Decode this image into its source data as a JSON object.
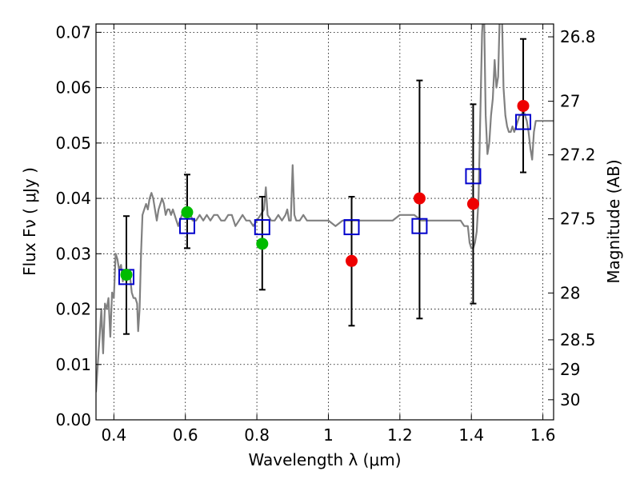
{
  "chart_data": {
    "type": "scatter",
    "xlabel": "Wavelength  λ (μm)",
    "ylabel_left": "Flux  Fν ( μJy )",
    "ylabel_right": "Magnitude (AB)",
    "xlim": [
      0.35,
      1.63
    ],
    "ylim": [
      0.0,
      0.0715
    ],
    "grid": true,
    "x_ticks": [
      0.4,
      0.6,
      0.8,
      1.0,
      1.2,
      1.4,
      1.6
    ],
    "x_tick_labels": [
      "0.4",
      "0.6",
      "0.8",
      "1",
      "1.2",
      "1.4",
      "1.6"
    ],
    "y_ticks": [
      0.0,
      0.01,
      0.02,
      0.03,
      0.04,
      0.05,
      0.06,
      0.07
    ],
    "y_tick_labels": [
      "0.00",
      "0.01",
      "0.02",
      "0.03",
      "0.04",
      "0.05",
      "0.06",
      "0.07"
    ],
    "right_axis_ticks": [
      {
        "label": "26.8",
        "value": 26.8
      },
      {
        "label": "27",
        "value": 27.0
      },
      {
        "label": "27.2",
        "value": 27.2
      },
      {
        "label": "27.5",
        "value": 27.5
      },
      {
        "label": "28",
        "value": 28.0
      },
      {
        "label": "28.5",
        "value": 28.5
      },
      {
        "label": "29",
        "value": 29.0
      },
      {
        "label": "30",
        "value": 30.0
      }
    ],
    "colors": {
      "model_spectrum": "#808080",
      "model_photometry": "#0000cc",
      "green_points": "#00bb00",
      "red_points": "#ee0000",
      "error_bars": "#000000"
    },
    "series": [
      {
        "kind": "model_spectrum",
        "points": [
          [
            0.35,
            0.005
          ],
          [
            0.355,
            0.01
          ],
          [
            0.36,
            0.015
          ],
          [
            0.365,
            0.02
          ],
          [
            0.37,
            0.012
          ],
          [
            0.375,
            0.021
          ],
          [
            0.38,
            0.02
          ],
          [
            0.385,
            0.022
          ],
          [
            0.39,
            0.015
          ],
          [
            0.395,
            0.023
          ],
          [
            0.4,
            0.022
          ],
          [
            0.405,
            0.03
          ],
          [
            0.41,
            0.029
          ],
          [
            0.415,
            0.027
          ],
          [
            0.42,
            0.028
          ],
          [
            0.425,
            0.025
          ],
          [
            0.43,
            0.027
          ],
          [
            0.435,
            0.025
          ],
          [
            0.44,
            0.026
          ],
          [
            0.445,
            0.026
          ],
          [
            0.45,
            0.023
          ],
          [
            0.455,
            0.022
          ],
          [
            0.46,
            0.022
          ],
          [
            0.465,
            0.021
          ],
          [
            0.468,
            0.016
          ],
          [
            0.472,
            0.02
          ],
          [
            0.476,
            0.03
          ],
          [
            0.48,
            0.037
          ],
          [
            0.485,
            0.038
          ],
          [
            0.49,
            0.039
          ],
          [
            0.495,
            0.038
          ],
          [
            0.5,
            0.04
          ],
          [
            0.505,
            0.041
          ],
          [
            0.51,
            0.04
          ],
          [
            0.515,
            0.038
          ],
          [
            0.52,
            0.036
          ],
          [
            0.525,
            0.038
          ],
          [
            0.53,
            0.039
          ],
          [
            0.535,
            0.04
          ],
          [
            0.54,
            0.039
          ],
          [
            0.545,
            0.037
          ],
          [
            0.55,
            0.038
          ],
          [
            0.555,
            0.038
          ],
          [
            0.56,
            0.037
          ],
          [
            0.565,
            0.038
          ],
          [
            0.57,
            0.037
          ],
          [
            0.575,
            0.036
          ],
          [
            0.58,
            0.035
          ],
          [
            0.585,
            0.036
          ],
          [
            0.59,
            0.037
          ],
          [
            0.6,
            0.037
          ],
          [
            0.61,
            0.038
          ],
          [
            0.62,
            0.036
          ],
          [
            0.63,
            0.036
          ],
          [
            0.64,
            0.037
          ],
          [
            0.65,
            0.036
          ],
          [
            0.66,
            0.037
          ],
          [
            0.67,
            0.036
          ],
          [
            0.68,
            0.037
          ],
          [
            0.69,
            0.037
          ],
          [
            0.7,
            0.036
          ],
          [
            0.71,
            0.036
          ],
          [
            0.72,
            0.037
          ],
          [
            0.73,
            0.037
          ],
          [
            0.74,
            0.035
          ],
          [
            0.75,
            0.036
          ],
          [
            0.76,
            0.037
          ],
          [
            0.77,
            0.036
          ],
          [
            0.78,
            0.036
          ],
          [
            0.79,
            0.035
          ],
          [
            0.8,
            0.036
          ],
          [
            0.81,
            0.037
          ],
          [
            0.82,
            0.038
          ],
          [
            0.825,
            0.042
          ],
          [
            0.83,
            0.037
          ],
          [
            0.84,
            0.036
          ],
          [
            0.85,
            0.036
          ],
          [
            0.86,
            0.037
          ],
          [
            0.87,
            0.036
          ],
          [
            0.88,
            0.037
          ],
          [
            0.885,
            0.038
          ],
          [
            0.89,
            0.036
          ],
          [
            0.895,
            0.036
          ],
          [
            0.9,
            0.046
          ],
          [
            0.905,
            0.037
          ],
          [
            0.91,
            0.036
          ],
          [
            0.92,
            0.036
          ],
          [
            0.93,
            0.037
          ],
          [
            0.94,
            0.036
          ],
          [
            0.95,
            0.036
          ],
          [
            0.96,
            0.036
          ],
          [
            0.97,
            0.036
          ],
          [
            0.98,
            0.036
          ],
          [
            0.99,
            0.036
          ],
          [
            1.0,
            0.036
          ],
          [
            1.02,
            0.035
          ],
          [
            1.04,
            0.036
          ],
          [
            1.06,
            0.036
          ],
          [
            1.08,
            0.036
          ],
          [
            1.1,
            0.036
          ],
          [
            1.12,
            0.036
          ],
          [
            1.14,
            0.036
          ],
          [
            1.16,
            0.036
          ],
          [
            1.18,
            0.036
          ],
          [
            1.2,
            0.037
          ],
          [
            1.22,
            0.037
          ],
          [
            1.24,
            0.037
          ],
          [
            1.26,
            0.036
          ],
          [
            1.28,
            0.036
          ],
          [
            1.3,
            0.036
          ],
          [
            1.32,
            0.036
          ],
          [
            1.34,
            0.036
          ],
          [
            1.36,
            0.036
          ],
          [
            1.37,
            0.036
          ],
          [
            1.38,
            0.035
          ],
          [
            1.39,
            0.035
          ],
          [
            1.395,
            0.032
          ],
          [
            1.4,
            0.031
          ],
          [
            1.405,
            0.031
          ],
          [
            1.41,
            0.032
          ],
          [
            1.415,
            0.034
          ],
          [
            1.42,
            0.04
          ],
          [
            1.425,
            0.055
          ],
          [
            1.43,
            0.07
          ],
          [
            1.435,
            0.075
          ],
          [
            1.44,
            0.055
          ],
          [
            1.445,
            0.048
          ],
          [
            1.45,
            0.05
          ],
          [
            1.455,
            0.055
          ],
          [
            1.46,
            0.058
          ],
          [
            1.465,
            0.065
          ],
          [
            1.47,
            0.06
          ],
          [
            1.475,
            0.062
          ],
          [
            1.48,
            0.075
          ],
          [
            1.485,
            0.075
          ],
          [
            1.49,
            0.06
          ],
          [
            1.495,
            0.055
          ],
          [
            1.5,
            0.053
          ],
          [
            1.505,
            0.052
          ],
          [
            1.51,
            0.052
          ],
          [
            1.515,
            0.053
          ],
          [
            1.52,
            0.052
          ],
          [
            1.525,
            0.053
          ],
          [
            1.53,
            0.054
          ],
          [
            1.535,
            0.055
          ],
          [
            1.54,
            0.055
          ],
          [
            1.545,
            0.056
          ],
          [
            1.55,
            0.055
          ],
          [
            1.555,
            0.054
          ],
          [
            1.56,
            0.052
          ],
          [
            1.565,
            0.049
          ],
          [
            1.57,
            0.047
          ],
          [
            1.575,
            0.052
          ],
          [
            1.58,
            0.054
          ],
          [
            1.59,
            0.054
          ],
          [
            1.6,
            0.054
          ],
          [
            1.61,
            0.054
          ],
          [
            1.62,
            0.054
          ],
          [
            1.63,
            0.054
          ]
        ]
      },
      {
        "kind": "model_photometry",
        "marker": "open-square",
        "points": [
          {
            "x": 0.435,
            "y": 0.0258
          },
          {
            "x": 0.605,
            "y": 0.035
          },
          {
            "x": 0.815,
            "y": 0.0348
          },
          {
            "x": 1.065,
            "y": 0.0348
          },
          {
            "x": 1.255,
            "y": 0.035
          },
          {
            "x": 1.405,
            "y": 0.044
          },
          {
            "x": 1.545,
            "y": 0.0538
          }
        ]
      },
      {
        "kind": "observed_green",
        "marker": "filled-circle",
        "points": [
          {
            "x": 0.435,
            "y": 0.0262,
            "ylo": 0.0155,
            "yhi": 0.0368
          },
          {
            "x": 0.605,
            "y": 0.0375,
            "ylo": 0.031,
            "yhi": 0.0443
          },
          {
            "x": 0.815,
            "y": 0.0318,
            "ylo": 0.0235,
            "yhi": 0.0403
          }
        ]
      },
      {
        "kind": "observed_red",
        "marker": "filled-circle",
        "points": [
          {
            "x": 1.065,
            "y": 0.0287,
            "ylo": 0.017,
            "yhi": 0.0403
          },
          {
            "x": 1.255,
            "y": 0.04,
            "ylo": 0.0183,
            "yhi": 0.0613
          },
          {
            "x": 1.405,
            "y": 0.039,
            "ylo": 0.021,
            "yhi": 0.057
          },
          {
            "x": 1.545,
            "y": 0.0567,
            "ylo": 0.0447,
            "yhi": 0.0688
          }
        ]
      }
    ]
  }
}
